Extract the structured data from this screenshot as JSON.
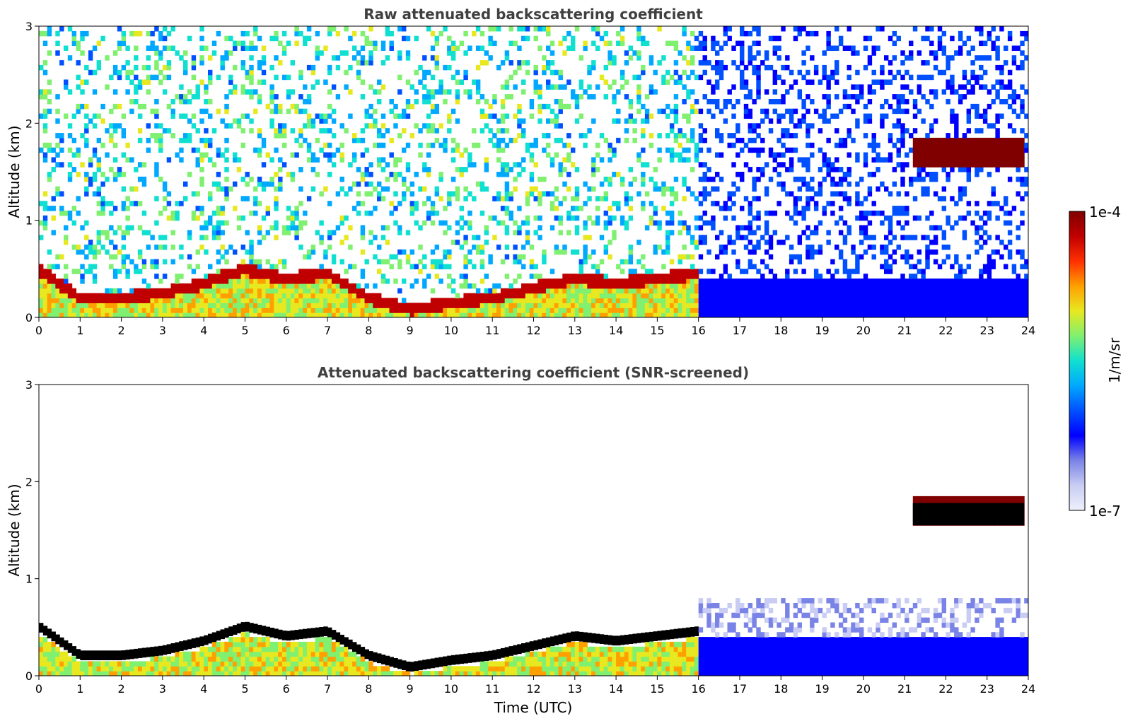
{
  "chart_data": [
    {
      "type": "heatmap",
      "title": "Raw attenuated backscattering coefficient",
      "xlabel": "",
      "ylabel": "Altitude (km)",
      "xlim": [
        0,
        24
      ],
      "ylim": [
        0,
        3
      ],
      "xticks": [
        "0",
        "1",
        "2",
        "3",
        "4",
        "5",
        "6",
        "7",
        "8",
        "9",
        "10",
        "11",
        "12",
        "13",
        "14",
        "15",
        "16",
        "17",
        "18",
        "19",
        "20",
        "21",
        "22",
        "23",
        "24"
      ],
      "yticks": [
        "0",
        "1",
        "2",
        "3"
      ],
      "cloud_layer": {
        "x": [
          21.2,
          23.9
        ],
        "y": [
          1.55,
          1.85
        ]
      },
      "boundary_layer_top": {
        "x": [
          0,
          1,
          2,
          3,
          4,
          5,
          6,
          7,
          8,
          9,
          10,
          11,
          12,
          13,
          14,
          15,
          16
        ],
        "y": [
          0.5,
          0.2,
          0.2,
          0.25,
          0.35,
          0.5,
          0.4,
          0.45,
          0.2,
          0.08,
          0.15,
          0.2,
          0.3,
          0.4,
          0.35,
          0.4,
          0.45
        ]
      }
    },
    {
      "type": "heatmap",
      "title": "Attenuated backscattering coefficient (SNR-screened)",
      "xlabel": "Time (UTC)",
      "ylabel": "Altitude (km)",
      "xlim": [
        0,
        24
      ],
      "ylim": [
        0,
        3
      ],
      "xticks": [
        "0",
        "1",
        "2",
        "3",
        "4",
        "5",
        "6",
        "7",
        "8",
        "9",
        "10",
        "11",
        "12",
        "13",
        "14",
        "15",
        "16",
        "17",
        "18",
        "19",
        "20",
        "21",
        "22",
        "23",
        "24"
      ],
      "yticks": [
        "0",
        "1",
        "2",
        "3"
      ],
      "cloud_layer": {
        "x": [
          21.2,
          23.9
        ],
        "y": [
          1.55,
          1.85
        ]
      },
      "boundary_layer_top": {
        "x": [
          0,
          1,
          2,
          3,
          4,
          5,
          6,
          7,
          8,
          9,
          10,
          11,
          12,
          13,
          14,
          15,
          16
        ],
        "y": [
          0.5,
          0.2,
          0.2,
          0.25,
          0.35,
          0.5,
          0.4,
          0.45,
          0.2,
          0.08,
          0.15,
          0.2,
          0.3,
          0.4,
          0.35,
          0.4,
          0.45
        ]
      }
    }
  ],
  "colorbar": {
    "label": "1/m/sr",
    "max_label": "1e-4",
    "min_label": "1e-7",
    "colors": [
      "#eef0fb",
      "#c9cdf3",
      "#7a83e6",
      "#0000ff",
      "#0050ff",
      "#00a8ff",
      "#10e0d0",
      "#80f070",
      "#e8e820",
      "#ffa000",
      "#ff3000",
      "#c00000",
      "#800000"
    ]
  }
}
